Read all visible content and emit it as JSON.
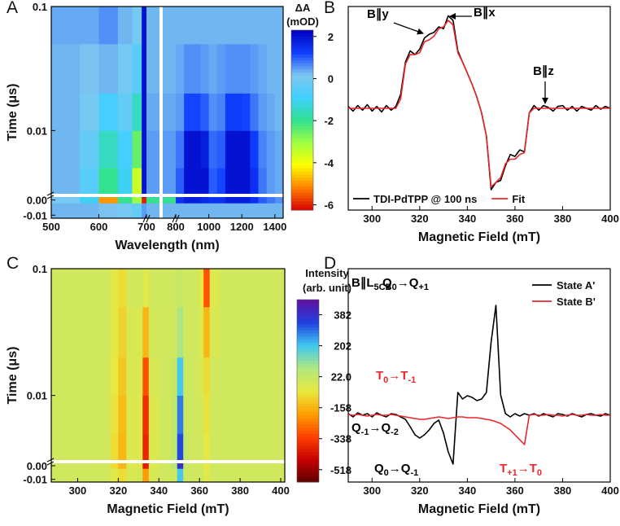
{
  "chart_data": [
    {
      "type": "heatmap",
      "panel_label": "A",
      "xlabel": "Wavelength (nm)",
      "ylabel": "Time (μs)",
      "xlim": [
        500,
        1450
      ],
      "xbreaks": [
        700,
        800
      ],
      "xticks": [
        500,
        600,
        700,
        800,
        1000,
        1200,
        1400
      ],
      "ylim": [
        -0.012,
        0.1
      ],
      "yscale": "log",
      "ybreak": 0.003,
      "yticks": [
        0.1,
        0.01,
        {
          "value": 0,
          "label": "0.00"
        },
        -0.01
      ],
      "x_edges": [
        500,
        560,
        600,
        640,
        670,
        690,
        700,
        800,
        850,
        900,
        950,
        1000,
        1050,
        1100,
        1150,
        1200,
        1250,
        1300,
        1350,
        1400,
        1450
      ],
      "y_edges": [
        -0.012,
        -0.002,
        0.002,
        0.003,
        0.005,
        0.01,
        0.02,
        0.05,
        0.1
      ],
      "z": [
        [
          0.3,
          0.3,
          0.2,
          0,
          -0.3,
          0.5,
          0.3,
          0.3,
          0.3,
          0.3,
          0.3,
          0.3,
          0.3,
          0.3,
          0.3,
          0.3,
          0.3,
          0.3,
          0.3,
          0.3
        ],
        [
          0,
          -1,
          -5,
          -2,
          -3,
          -6,
          -2,
          1.5,
          1.8,
          1.8,
          1.6,
          1.5,
          1.5,
          1.8,
          1.8,
          1.8,
          1.5,
          1,
          0.8,
          0.6
        ],
        [
          0.3,
          -0.5,
          -2,
          -1,
          -3.5,
          2,
          0.5,
          1,
          2,
          2,
          2,
          1,
          1.2,
          2,
          2,
          2,
          1.5,
          0.8,
          0.5,
          0.4
        ],
        [
          0.3,
          -0.5,
          -2,
          -1,
          -3.5,
          2,
          0.5,
          1,
          2,
          2,
          2,
          1,
          1.2,
          2,
          2,
          2,
          1.5,
          0.8,
          0.5,
          0.4
        ],
        [
          0.3,
          -0.3,
          -1.5,
          -0.8,
          -2.5,
          2,
          0.5,
          0.8,
          2,
          2,
          1.8,
          0.9,
          1,
          2,
          2,
          2,
          1.3,
          0.7,
          0.5,
          0.4
        ],
        [
          0.3,
          0,
          -0.8,
          -0.3,
          -1.5,
          2,
          0.4,
          0.5,
          1.2,
          1.2,
          1,
          0.6,
          0.7,
          1.3,
          1.3,
          1.2,
          0.8,
          0.5,
          0.4,
          0.3
        ],
        [
          0.3,
          0.2,
          0.3,
          0,
          -0.5,
          2,
          0.3,
          0.4,
          0.6,
          0.6,
          0.5,
          0.4,
          0.5,
          0.6,
          0.6,
          0.6,
          0.5,
          0.4,
          0.3,
          0.3
        ],
        [
          0.4,
          0.4,
          0.6,
          0.3,
          0,
          2,
          0.3,
          0.3,
          0.3,
          0.3,
          0.3,
          0.3,
          0.3,
          0.3,
          0.3,
          0.3,
          0.3,
          0.3,
          0.3,
          0.3
        ]
      ],
      "colorbar": {
        "label": [
          "ΔA",
          "(mOD)"
        ],
        "clim": [
          -6.25,
          2.3
        ],
        "ticks": [
          2,
          0,
          -2,
          -4,
          -6
        ],
        "colormap": [
          "#d80000",
          "#ff8000",
          "#ffff00",
          "#a0ff40",
          "#30e090",
          "#40d0ff",
          "#7ec8f0",
          "#1040ff",
          "#0000c0"
        ]
      }
    },
    {
      "type": "line",
      "panel_label": "B",
      "xlabel": "Magnetic Field (mT)",
      "xlim": [
        290,
        400
      ],
      "xticks": [
        300,
        320,
        340,
        360,
        380,
        400
      ],
      "ylim": [
        -1.1,
        1.1
      ],
      "legend": "lower left",
      "x": [
        290,
        292,
        294,
        296,
        298,
        300,
        302,
        304,
        306,
        308,
        310,
        312,
        314,
        316,
        318,
        320,
        322,
        324,
        326,
        328,
        330,
        332,
        334,
        336,
        338,
        340,
        342,
        344,
        346,
        348,
        350,
        352,
        354,
        356,
        358,
        360,
        362,
        364,
        366,
        368,
        370,
        372,
        374,
        376,
        378,
        380,
        382,
        384,
        386,
        388,
        390,
        392,
        394,
        396,
        398,
        400
      ],
      "series": [
        {
          "name": "TDI-PdTPP @ 100 ns",
          "color": "#000000",
          "values": [
            0.02,
            -0.03,
            0.03,
            -0.02,
            0.04,
            -0.03,
            0.02,
            -0.04,
            0.03,
            -0.02,
            0.02,
            0.15,
            0.5,
            0.62,
            0.58,
            0.64,
            0.76,
            0.8,
            0.82,
            0.88,
            0.86,
            1.0,
            0.95,
            0.62,
            0.5,
            0.38,
            0.26,
            0.12,
            -0.05,
            -0.3,
            -0.88,
            -0.8,
            -0.78,
            -0.62,
            -0.5,
            -0.52,
            -0.45,
            -0.47,
            -0.05,
            0.03,
            -0.02,
            0.03,
            0.01,
            -0.03,
            0.02,
            0.03,
            -0.02,
            0.02,
            -0.03,
            0.02,
            0.0,
            -0.02,
            0.03,
            -0.01,
            0.02,
            0.0
          ]
        },
        {
          "name": "Fit",
          "color": "#e8262b",
          "values": [
            0,
            0,
            0,
            0,
            0,
            0,
            0,
            0,
            0,
            0,
            0,
            0.1,
            0.48,
            0.58,
            0.58,
            0.6,
            0.72,
            0.74,
            0.78,
            0.86,
            0.88,
            0.95,
            0.9,
            0.6,
            0.5,
            0.38,
            0.26,
            0.12,
            -0.05,
            -0.3,
            -0.85,
            -0.8,
            -0.75,
            -0.6,
            -0.55,
            -0.55,
            -0.5,
            -0.48,
            -0.05,
            0,
            0,
            0,
            0,
            0,
            0,
            0,
            0,
            0,
            0,
            0,
            0,
            0,
            0,
            0,
            0,
            0
          ]
        }
      ],
      "annotations": [
        {
          "parts": [
            "B∥y"
          ],
          "color": "#000000"
        },
        {
          "parts": [
            "B∥x"
          ],
          "color": "#000000"
        },
        {
          "parts": [
            "B∥z"
          ],
          "color": "#000000"
        }
      ]
    },
    {
      "type": "heatmap",
      "panel_label": "C",
      "xlabel": "Magnetic Field (mT)",
      "ylabel": "Time (μs)",
      "xlim": [
        287,
        402
      ],
      "xticks": [
        300,
        320,
        340,
        360,
        380,
        400
      ],
      "ylim": [
        -0.012,
        0.1
      ],
      "yscale": "log",
      "ybreak": 0.003,
      "yticks": [
        0.1,
        0.01,
        {
          "value": 0,
          "label": "0.00"
        },
        -0.01
      ],
      "x_edges": [
        287,
        300,
        310,
        316,
        320,
        324,
        330,
        332,
        335,
        340,
        346,
        349,
        352,
        355,
        360,
        362,
        365,
        370,
        380,
        402
      ],
      "y_edges": [
        -0.012,
        -0.002,
        0.002,
        0.003,
        0.005,
        0.01,
        0.02,
        0.05,
        0.1
      ],
      "z": [
        [
          0,
          0,
          0,
          -40,
          -80,
          -20,
          0,
          -200,
          -20,
          0,
          0,
          200,
          0,
          0,
          0,
          -40,
          0,
          0,
          0
        ],
        [
          0,
          0,
          0,
          -80,
          -150,
          -30,
          -50,
          -400,
          -30,
          0,
          50,
          380,
          20,
          0,
          0,
          -60,
          0,
          0,
          0
        ],
        [
          0,
          0,
          0,
          -80,
          -150,
          -30,
          -40,
          -380,
          -30,
          0,
          40,
          330,
          20,
          0,
          0,
          -60,
          0,
          0,
          0
        ],
        [
          0,
          0,
          0,
          -80,
          -150,
          -30,
          -40,
          -380,
          -30,
          0,
          40,
          330,
          20,
          0,
          0,
          -60,
          0,
          0,
          0
        ],
        [
          0,
          0,
          0,
          -70,
          -140,
          -30,
          -40,
          -360,
          -30,
          0,
          30,
          280,
          10,
          0,
          0,
          -70,
          0,
          0,
          0
        ],
        [
          0,
          0,
          0,
          -60,
          -120,
          -20,
          -30,
          -300,
          -20,
          0,
          20,
          200,
          10,
          0,
          -20,
          -80,
          0,
          0,
          0
        ],
        [
          0,
          0,
          0,
          -50,
          -100,
          -20,
          -20,
          -150,
          -10,
          0,
          0,
          80,
          0,
          0,
          -30,
          -150,
          -20,
          0,
          0
        ],
        [
          0,
          0,
          0,
          -50,
          -80,
          -10,
          0,
          -40,
          0,
          0,
          0,
          20,
          0,
          0,
          -60,
          -300,
          -30,
          0,
          0
        ]
      ],
      "colorbar": {
        "label": [
          "Intensity",
          "(arb. unit)"
        ],
        "clim": [
          -590,
          470
        ],
        "ticks": [
          382,
          202,
          {
            "value": 22,
            "label": "22.0"
          },
          -158,
          -338,
          -518
        ],
        "colormap": [
          "#5c0000",
          "#c80000",
          "#ff4000",
          "#ffa000",
          "#e8e840",
          "#b0e880",
          "#40c8f0",
          "#2040e0",
          "#6010a0"
        ]
      }
    },
    {
      "type": "line",
      "panel_label": "D",
      "xlabel": "Magnetic Field (mT)",
      "xlim": [
        290,
        400
      ],
      "xticks": [
        300,
        320,
        340,
        360,
        380,
        400
      ],
      "ylim": [
        -0.82,
        1.8
      ],
      "legend": "upper right",
      "x": [
        290,
        292,
        294,
        296,
        298,
        300,
        302,
        304,
        306,
        308,
        310,
        312,
        314,
        316,
        318,
        320,
        322,
        324,
        326,
        328,
        330,
        332,
        334,
        336,
        338,
        340,
        342,
        344,
        346,
        348,
        350,
        352,
        354,
        356,
        358,
        360,
        362,
        364,
        366,
        368,
        370,
        372,
        374,
        376,
        378,
        380,
        382,
        384,
        386,
        388,
        390,
        392,
        394,
        396,
        398,
        400
      ],
      "series": [
        {
          "name": "State A'",
          "color": "#000000",
          "values": [
            0.02,
            -0.02,
            0.03,
            0.0,
            0.02,
            -0.02,
            0.03,
            0.0,
            -0.02,
            0.02,
            0.01,
            -0.02,
            -0.05,
            -0.14,
            -0.24,
            -0.28,
            -0.24,
            -0.18,
            -0.1,
            -0.06,
            -0.22,
            -0.45,
            -0.6,
            0.28,
            0.2,
            0.24,
            0.22,
            0.18,
            0.2,
            0.28,
            0.9,
            1.35,
            0.25,
            0.02,
            -0.02,
            0.02,
            -0.01,
            0.02,
            0.0,
            0.02,
            -0.01,
            0.02,
            0.0,
            -0.02,
            0.02,
            0.01,
            -0.01,
            0.02,
            0.0,
            -0.02,
            0.01,
            0.02,
            0.0,
            -0.01,
            0.02,
            0.0
          ]
        },
        {
          "name": "State B'",
          "color": "#e8262b",
          "values": [
            0.01,
            0,
            0.01,
            0,
            -0.01,
            0,
            0.01,
            0,
            0,
            0.01,
            0,
            -0.01,
            -0.02,
            -0.03,
            -0.04,
            -0.05,
            -0.05,
            -0.04,
            -0.03,
            -0.02,
            -0.03,
            -0.04,
            -0.03,
            -0.02,
            -0.02,
            -0.03,
            -0.03,
            -0.03,
            -0.04,
            -0.05,
            -0.06,
            -0.08,
            -0.1,
            -0.14,
            -0.18,
            -0.24,
            -0.3,
            -0.36,
            0.0,
            0.01,
            0,
            0,
            0.01,
            0,
            0,
            -0.01,
            0,
            0.01,
            0,
            0,
            0.01,
            0,
            0,
            0.01,
            0,
            0
          ]
        }
      ],
      "annotations": [
        {
          "parts": [
            "B∥L",
            "5CB"
          ],
          "color": "#000000"
        },
        {
          "parts": [
            "Q",
            "0",
            "→Q",
            "+1"
          ],
          "color": "#000000"
        },
        {
          "parts": [
            "T",
            "0",
            "→T",
            "-1"
          ],
          "color": "#e8262b"
        },
        {
          "parts": [
            "Q",
            "-1",
            "→Q",
            "-2"
          ],
          "color": "#000000"
        },
        {
          "parts": [
            "Q",
            "0",
            "→Q",
            "-1"
          ],
          "color": "#000000"
        },
        {
          "parts": [
            "T",
            "+1",
            "→T",
            "0"
          ],
          "color": "#e8262b"
        }
      ]
    }
  ]
}
